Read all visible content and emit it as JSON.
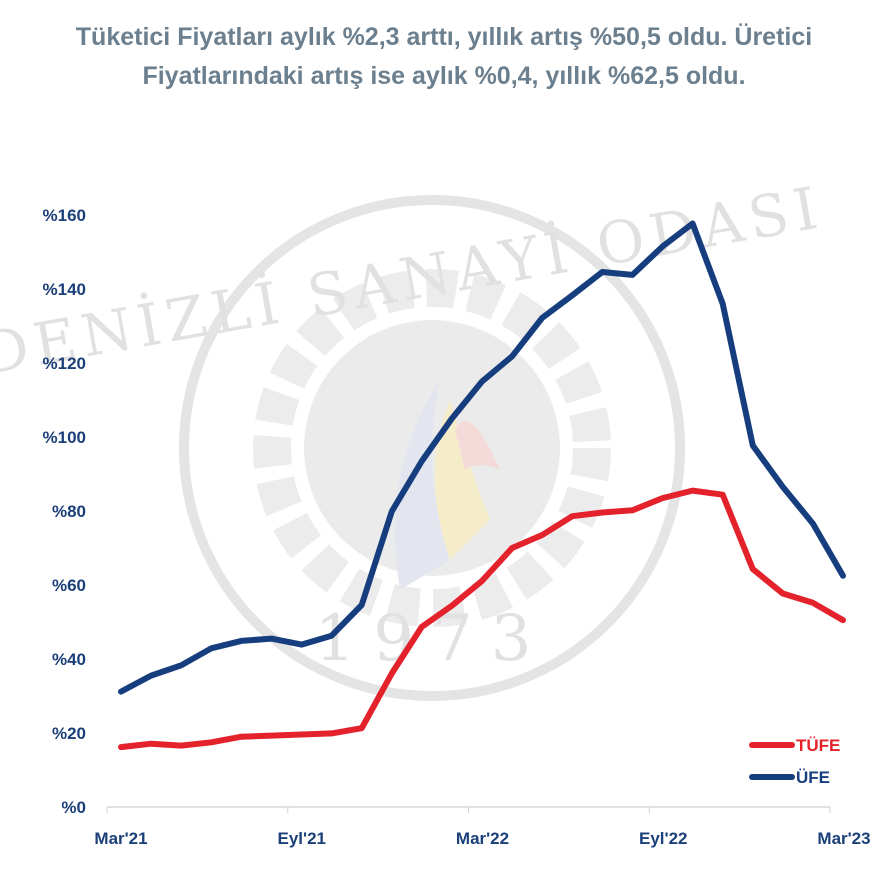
{
  "title": "Tüketici Fiyatları aylık %2,3 arttı, yıllık artış %50,5 oldu. Üretici Fiyatlarındaki artış ise aylık %0,4, yıllık %62,5 oldu.",
  "watermark": {
    "name": "DENİZLİ SANAYİ ODASI",
    "year": "1973"
  },
  "colors": {
    "tufe": "#e4222b",
    "ufe": "#163e7f",
    "axis_text": "#1b3f78",
    "title": "#6b7f8e"
  },
  "chart_data": {
    "type": "line",
    "title": "Tüketici Fiyatları aylık %2,3 arttı, yıllık artış %50,5 oldu. Üretici Fiyatlarındaki artış ise aylık %0,4, yıllık %62,5 oldu.",
    "x": [
      "Mar'21",
      "Nis'21",
      "May'21",
      "Haz'21",
      "Tem'21",
      "Ağu'21",
      "Eyl'21",
      "Eki'21",
      "Kas'21",
      "Ara'21",
      "Oca'22",
      "Şub'22",
      "Mar'22",
      "Nis'22",
      "May'22",
      "Haz'22",
      "Tem'22",
      "Ağu'22",
      "Eyl'22",
      "Eki'22",
      "Kas'22",
      "Ara'22",
      "Oca'23",
      "Şub'23",
      "Mar'23"
    ],
    "x_tick_labels": [
      "Mar'21",
      "Eyl'21",
      "Mar'22",
      "Eyl'22",
      "Mar'23"
    ],
    "x_tick_indices": [
      0,
      6,
      12,
      18,
      24
    ],
    "y_tick_labels": [
      "%0",
      "%20",
      "%40",
      "%60",
      "%80",
      "%100",
      "%120",
      "%140",
      "%160"
    ],
    "y_tick_values": [
      0,
      20,
      40,
      60,
      80,
      100,
      120,
      140,
      160
    ],
    "ylim": [
      0,
      160
    ],
    "grid": false,
    "legend_position": "bottom-right",
    "series": [
      {
        "name": "TÜFE",
        "color": "#e4222b",
        "values": [
          16.2,
          17.1,
          16.6,
          17.5,
          19.0,
          19.3,
          19.6,
          19.9,
          21.3,
          36.1,
          48.7,
          54.4,
          61.1,
          70.0,
          73.5,
          78.6,
          79.6,
          80.2,
          83.5,
          85.5,
          84.4,
          64.3,
          57.7,
          55.2,
          50.5
        ]
      },
      {
        "name": "ÜFE",
        "color": "#163e7f",
        "values": [
          31.2,
          35.5,
          38.3,
          42.9,
          44.9,
          45.5,
          43.9,
          46.3,
          54.6,
          79.9,
          93.5,
          105.0,
          115.0,
          121.8,
          132.2,
          138.3,
          144.6,
          143.8,
          151.5,
          157.7,
          136.0,
          97.7,
          86.5,
          76.6,
          62.5
        ]
      }
    ]
  }
}
